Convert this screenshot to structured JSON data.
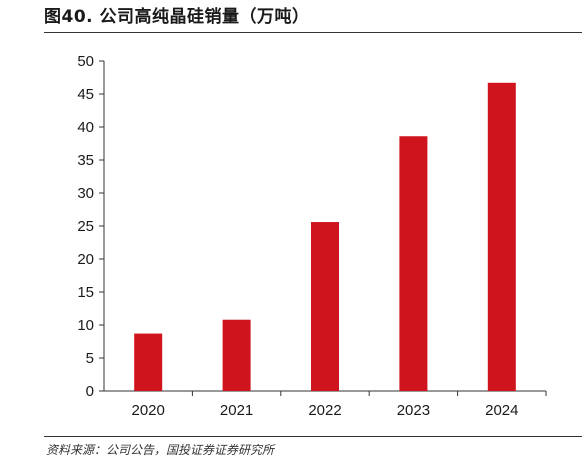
{
  "title": "图40. 公司高纯晶硅销量（万吨）",
  "source": "资料来源：公司公告，国投证券证券研究所",
  "colors": {
    "bar": "#d0141e",
    "axis": "#333333",
    "text": "#1a1a1a"
  },
  "chart_data": {
    "type": "bar",
    "title": "图40. 公司高纯晶硅销量（万吨）",
    "categories": [
      "2020",
      "2021",
      "2022",
      "2023",
      "2024"
    ],
    "values": [
      8.7,
      10.8,
      25.6,
      38.6,
      46.7
    ],
    "ylim": [
      0,
      50
    ],
    "yticks": [
      0,
      5,
      10,
      15,
      20,
      25,
      30,
      35,
      40,
      45,
      50
    ],
    "xlabel": "",
    "ylabel": "",
    "grid": false,
    "legend": "none"
  }
}
